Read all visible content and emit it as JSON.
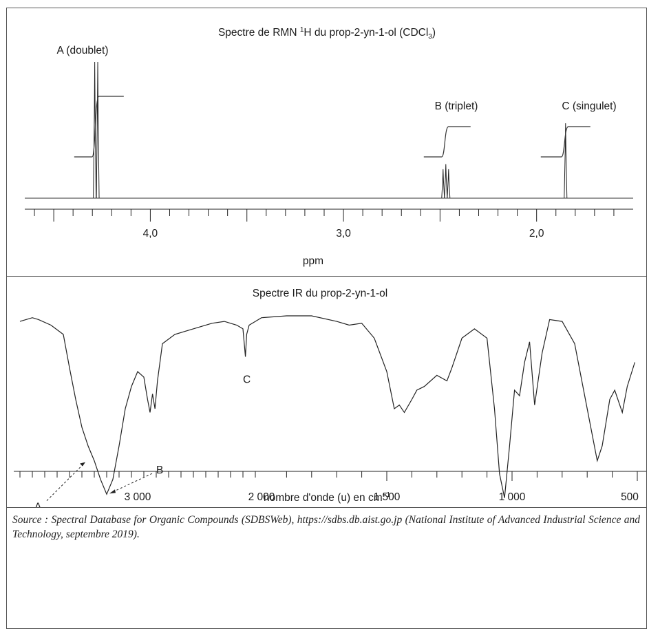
{
  "source": {
    "text": "Source : Spectral Database for Organic Compounds (SDBSWeb), https://sdbs.db.aist.go.jp (National Institute of Advanced Industrial Science and Technology, septembre 2019)."
  },
  "chart_data": [
    {
      "type": "line",
      "title_main": "Spectre de RMN ",
      "title_sup": "1",
      "title_mid": "H du prop-2-yn-1-ol (CDCl",
      "title_sub": "3",
      "title_end": ")",
      "xlabel": "ppm",
      "xlim": [
        4.65,
        1.5
      ],
      "x_reversed": true,
      "tick_labels": [
        "4,0",
        "3,0",
        "2,0"
      ],
      "tick_values": [
        4.0,
        3.0,
        2.0
      ],
      "peaks": [
        {
          "label": "A (doublet)",
          "center": 4.28,
          "multiplicity": "doublet",
          "intensity": 1.0
        },
        {
          "label": "B (triplet)",
          "center": 2.47,
          "multiplicity": "triplet",
          "intensity": 0.25
        },
        {
          "label": "C (singulet)",
          "center": 1.85,
          "multiplicity": "singulet",
          "intensity": 0.55
        }
      ],
      "integrals_relative": [
        2,
        1,
        1
      ]
    },
    {
      "type": "line",
      "title": "Spectre IR du prop-2-yn-1-ol",
      "xlabel_main": "nombre d'onde (u) en cm",
      "xlabel_sup": "−1",
      "x_reversed": true,
      "tick_labels": [
        "3 000",
        "2 000",
        "1 500",
        "1 000",
        "500"
      ],
      "tick_values": [
        3000,
        2000,
        1500,
        1000,
        500
      ],
      "y_units": "transmittance (relative)",
      "points_x": [
        3950,
        3850,
        3800,
        3700,
        3600,
        3550,
        3500,
        3450,
        3400,
        3350,
        3300,
        3250,
        3200,
        3150,
        3100,
        3050,
        3000,
        2950,
        2920,
        2900,
        2880,
        2860,
        2840,
        2800,
        2700,
        2600,
        2500,
        2400,
        2300,
        2200,
        2150,
        2130,
        2120,
        2100,
        2050,
        2000,
        1900,
        1800,
        1700,
        1650,
        1600,
        1550,
        1500,
        1470,
        1450,
        1430,
        1400,
        1380,
        1350,
        1300,
        1260,
        1240,
        1200,
        1150,
        1100,
        1070,
        1050,
        1030,
        1010,
        990,
        970,
        950,
        930,
        910,
        880,
        850,
        800,
        750,
        700,
        660,
        640,
        610,
        590,
        560,
        540,
        510
      ],
      "points_y": [
        0.97,
        0.99,
        0.98,
        0.95,
        0.9,
        0.72,
        0.55,
        0.4,
        0.3,
        0.22,
        0.12,
        0.04,
        0.12,
        0.3,
        0.5,
        0.62,
        0.7,
        0.67,
        0.55,
        0.48,
        0.58,
        0.5,
        0.65,
        0.85,
        0.9,
        0.92,
        0.94,
        0.96,
        0.97,
        0.95,
        0.93,
        0.78,
        0.9,
        0.95,
        0.97,
        0.99,
        1.0,
        1.0,
        0.97,
        0.95,
        0.96,
        0.88,
        0.7,
        0.5,
        0.52,
        0.48,
        0.55,
        0.6,
        0.62,
        0.68,
        0.65,
        0.72,
        0.88,
        0.93,
        0.88,
        0.5,
        0.15,
        0.02,
        0.3,
        0.6,
        0.57,
        0.75,
        0.86,
        0.52,
        0.8,
        0.98,
        0.97,
        0.85,
        0.5,
        0.22,
        0.3,
        0.55,
        0.6,
        0.48,
        0.62,
        0.75
      ],
      "annotations": [
        {
          "label": "A",
          "x": 3400,
          "note": "arrow to shoulder"
        },
        {
          "label": "B",
          "x": 3250,
          "note": "arrow to minimum"
        },
        {
          "label": "C",
          "x": 2130,
          "note": "sharp peak"
        }
      ]
    }
  ]
}
